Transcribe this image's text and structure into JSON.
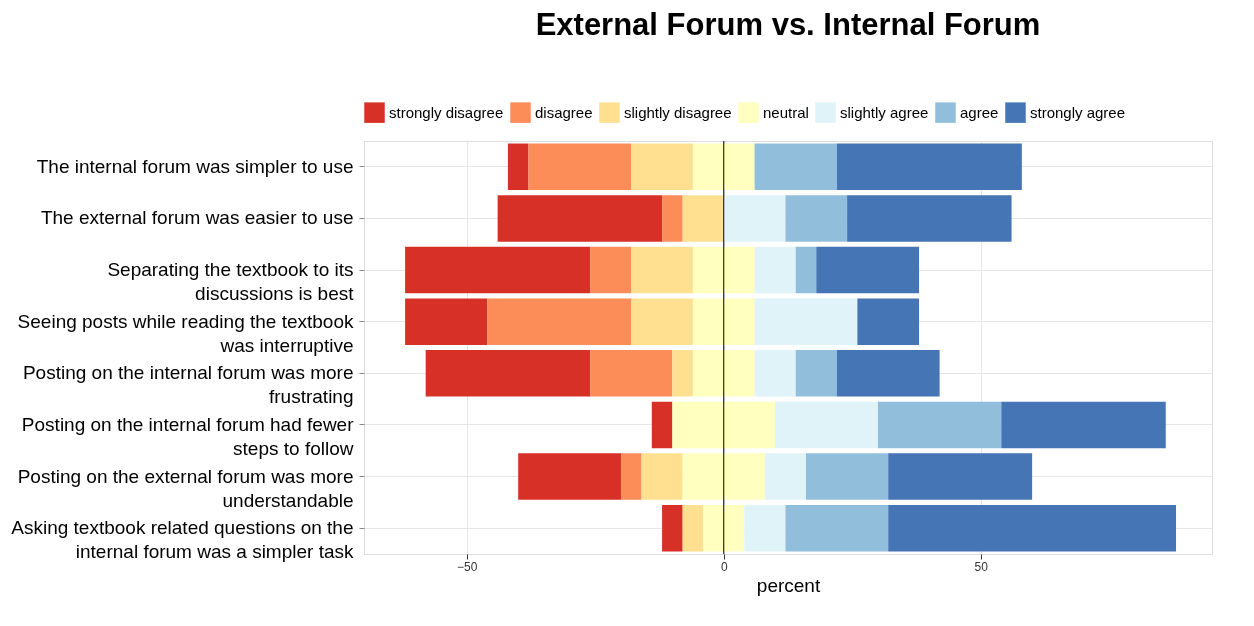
{
  "chart_data": {
    "type": "bar",
    "title": "External Forum vs. Internal Forum",
    "xlabel": "percent",
    "orientation": "horizontal",
    "categories": [
      "The internal forum was simpler to use",
      "The external forum was easier to use",
      "Separating the textbook to its discussions is best",
      "Seeing posts while reading the textbook was interruptive",
      "Posting on the internal forum was more frustrating",
      "Posting on the internal forum had fewer steps to follow",
      "Posting on the external forum was more understandable",
      "Asking textbook related questions on the internal forum was a simpler task"
    ],
    "series": [
      {
        "name": "strongly disagree",
        "color": "#d73027",
        "values": [
          4,
          32,
          36,
          16,
          32,
          4,
          20,
          4
        ],
        "base": [
          -42,
          -44,
          -62,
          -62,
          -58,
          -14,
          -40,
          -12
        ]
      },
      {
        "name": "disagree",
        "color": "#fc8d59",
        "values": [
          20,
          4,
          8,
          28,
          16,
          null,
          4,
          null
        ],
        "base": [
          -38,
          -12,
          -26,
          -46,
          -26,
          null,
          -20,
          null
        ]
      },
      {
        "name": "slightly disagree",
        "color": "#fee090",
        "values": [
          12,
          8,
          12,
          12,
          4,
          null,
          8,
          4
        ],
        "base": [
          -18,
          -8,
          -18,
          -18,
          -10,
          null,
          -16,
          -8
        ]
      },
      {
        "name": "neutral",
        "color": "#ffffbf",
        "values": [
          12,
          null,
          12,
          12,
          12,
          20,
          16,
          8
        ],
        "base": [
          -6,
          null,
          -6,
          -6,
          -6,
          -10,
          -8,
          -4
        ]
      },
      {
        "name": "slightly agree",
        "color": "#e0f3f8",
        "values": [
          null,
          12,
          8,
          20,
          8,
          20,
          8,
          8
        ],
        "base": [
          null,
          0,
          6,
          6,
          6,
          10,
          8,
          4
        ]
      },
      {
        "name": "agree",
        "color": "#91bfdb",
        "values": [
          16,
          12,
          4,
          null,
          8,
          24,
          16,
          20
        ],
        "base": [
          6,
          12,
          14,
          null,
          14,
          30,
          16,
          12
        ]
      },
      {
        "name": "strongly agree",
        "color": "#4575b4",
        "values": [
          36,
          32,
          20,
          12,
          20,
          32,
          28,
          56
        ],
        "base": [
          22,
          24,
          18,
          26,
          22,
          54,
          32,
          32
        ]
      }
    ],
    "xlim": [
      -70,
      95
    ],
    "xticks": [
      -50,
      0,
      50
    ],
    "grid": true,
    "legend": "top",
    "ref_lines": [
      {
        "axis": "x",
        "value": 0,
        "color": "#000000"
      }
    ]
  }
}
